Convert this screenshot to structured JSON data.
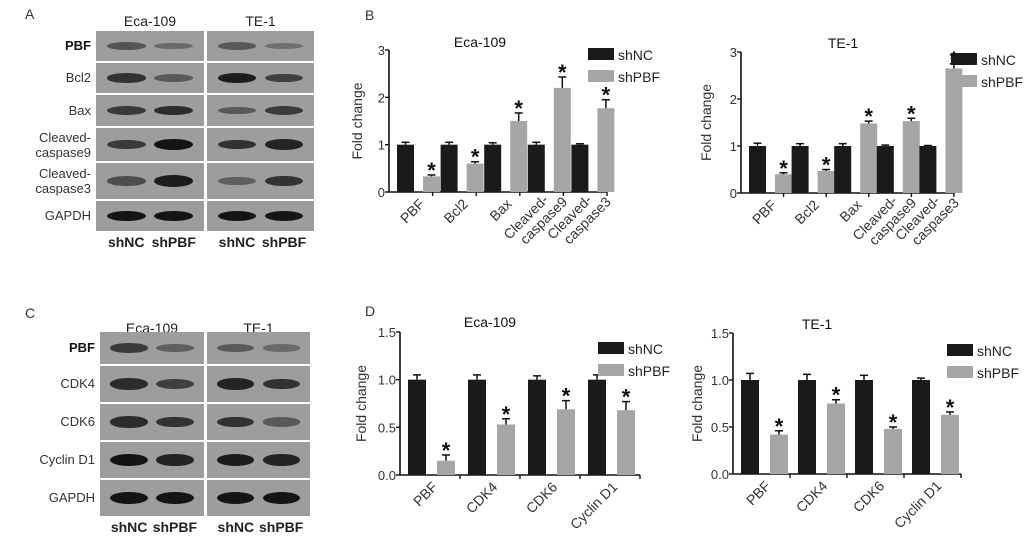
{
  "panels": {
    "A": {
      "letter": "A",
      "cell_lines": [
        "Eca-109",
        "TE-1"
      ],
      "lanes": [
        "shNC",
        "shPBF",
        "shNC",
        "shPBF"
      ],
      "rows": [
        {
          "label": "PBF",
          "bold": true,
          "intensity": [
            0.55,
            0.35,
            0.5,
            0.3
          ]
        },
        {
          "label": "Bcl2",
          "bold": false,
          "intensity": [
            0.8,
            0.5,
            0.95,
            0.7
          ]
        },
        {
          "label": "Bax",
          "bold": false,
          "intensity": [
            0.75,
            0.85,
            0.5,
            0.75
          ]
        },
        {
          "label": "Cleaved-\ncaspase9",
          "bold": false,
          "intensity": [
            0.75,
            1.0,
            0.8,
            0.9
          ]
        },
        {
          "label": "Cleaved-\ncaspase3",
          "bold": false,
          "intensity": [
            0.6,
            0.95,
            0.45,
            0.8
          ]
        },
        {
          "label": "GAPDH",
          "bold": false,
          "intensity": [
            1.0,
            1.0,
            1.0,
            1.0
          ]
        }
      ]
    },
    "C": {
      "letter": "C",
      "cell_lines": [
        "Eca-109",
        "TE-1"
      ],
      "lanes": [
        "shNC",
        "shPBF",
        "shNC",
        "shPBF"
      ],
      "rows": [
        {
          "label": "PBF",
          "bold": true,
          "intensity": [
            0.75,
            0.45,
            0.5,
            0.35
          ]
        },
        {
          "label": "CDK4",
          "bold": false,
          "intensity": [
            0.85,
            0.7,
            0.9,
            0.8
          ]
        },
        {
          "label": "CDK6",
          "bold": false,
          "intensity": [
            0.85,
            0.8,
            0.8,
            0.5
          ]
        },
        {
          "label": "Cyclin D1",
          "bold": false,
          "intensity": [
            1.0,
            0.9,
            0.95,
            0.9
          ]
        },
        {
          "label": "GAPDH",
          "bold": false,
          "intensity": [
            1.0,
            1.0,
            1.0,
            1.0
          ]
        }
      ]
    },
    "B": {
      "letter": "B"
    },
    "D": {
      "letter": "D"
    }
  },
  "colors": {
    "shNC": "#1a1a1a",
    "shPBF": "#a6a6a6",
    "blot_bg": "#9d9d9d",
    "band": "#1c1c1c"
  },
  "chart_data": [
    {
      "type": "bar",
      "panel": "B",
      "title": "Eca-109",
      "xlabel": "",
      "ylabel": "Fold change",
      "ylim": [
        0,
        3
      ],
      "yticks": [
        "0",
        "1",
        "2",
        "3"
      ],
      "categories": [
        "PBF",
        "Bcl2",
        "Bax",
        "Cleaved-\ncaspase9",
        "Cleaved-\ncaspase3"
      ],
      "series": [
        {
          "name": "shNC",
          "values": [
            1.0,
            1.0,
            1.0,
            1.0,
            1.0
          ],
          "errors": [
            0.05,
            0.05,
            0.04,
            0.05,
            0.02
          ]
        },
        {
          "name": "shPBF",
          "values": [
            0.33,
            0.6,
            1.5,
            2.2,
            1.77
          ],
          "errors": [
            0.03,
            0.04,
            0.17,
            0.23,
            0.18
          ]
        }
      ],
      "significance": [
        true,
        true,
        true,
        true,
        true
      ],
      "legend_position": "right",
      "grid": false
    },
    {
      "type": "bar",
      "panel": "B",
      "title": "TE-1",
      "xlabel": "",
      "ylabel": "Fold change",
      "ylim": [
        0,
        3
      ],
      "yticks": [
        "0",
        "1",
        "2",
        "3"
      ],
      "categories": [
        "PBF",
        "Bcl2",
        "Bax",
        "Cleaved-\ncaspase9",
        "Cleaved-\ncaspase3"
      ],
      "series": [
        {
          "name": "shNC",
          "values": [
            1.0,
            1.0,
            1.0,
            1.0,
            1.0
          ],
          "errors": [
            0.06,
            0.05,
            0.05,
            0.02,
            0.01
          ]
        },
        {
          "name": "shPBF",
          "values": [
            0.4,
            0.47,
            1.48,
            1.53,
            2.65
          ],
          "errors": [
            0.03,
            0.03,
            0.05,
            0.06,
            0.1
          ]
        }
      ],
      "significance": [
        true,
        true,
        true,
        true,
        true
      ],
      "legend_position": "right",
      "grid": false
    },
    {
      "type": "bar",
      "panel": "D",
      "title": "Eca-109",
      "xlabel": "",
      "ylabel": "Fold change",
      "ylim": [
        0,
        1.5
      ],
      "yticks": [
        "0.0",
        "0.5",
        "1.0",
        "1.5"
      ],
      "categories": [
        "PBF",
        "CDK4",
        "CDK6",
        "Cyclin D1"
      ],
      "series": [
        {
          "name": "shNC",
          "values": [
            1.0,
            1.0,
            1.0,
            1.0
          ],
          "errors": [
            0.05,
            0.05,
            0.04,
            0.05
          ]
        },
        {
          "name": "shPBF",
          "values": [
            0.15,
            0.53,
            0.69,
            0.68
          ],
          "errors": [
            0.06,
            0.06,
            0.09,
            0.09
          ]
        }
      ],
      "significance": [
        true,
        true,
        true,
        true
      ],
      "legend_position": "right",
      "grid": false
    },
    {
      "type": "bar",
      "panel": "D",
      "title": "TE-1",
      "xlabel": "",
      "ylabel": "Fold change",
      "ylim": [
        0,
        1.5
      ],
      "yticks": [
        "0.0",
        "0.5",
        "1.0",
        "1.5"
      ],
      "categories": [
        "PBF",
        "CDK4",
        "CDK6",
        "Cyclin D1"
      ],
      "series": [
        {
          "name": "shNC",
          "values": [
            1.0,
            1.0,
            1.0,
            1.0
          ],
          "errors": [
            0.07,
            0.06,
            0.05,
            0.02
          ]
        },
        {
          "name": "shPBF",
          "values": [
            0.42,
            0.75,
            0.48,
            0.63
          ],
          "errors": [
            0.04,
            0.04,
            0.02,
            0.03
          ]
        }
      ],
      "significance": [
        true,
        true,
        true,
        true
      ],
      "legend_position": "right",
      "grid": false
    }
  ],
  "significance_marker": "*"
}
